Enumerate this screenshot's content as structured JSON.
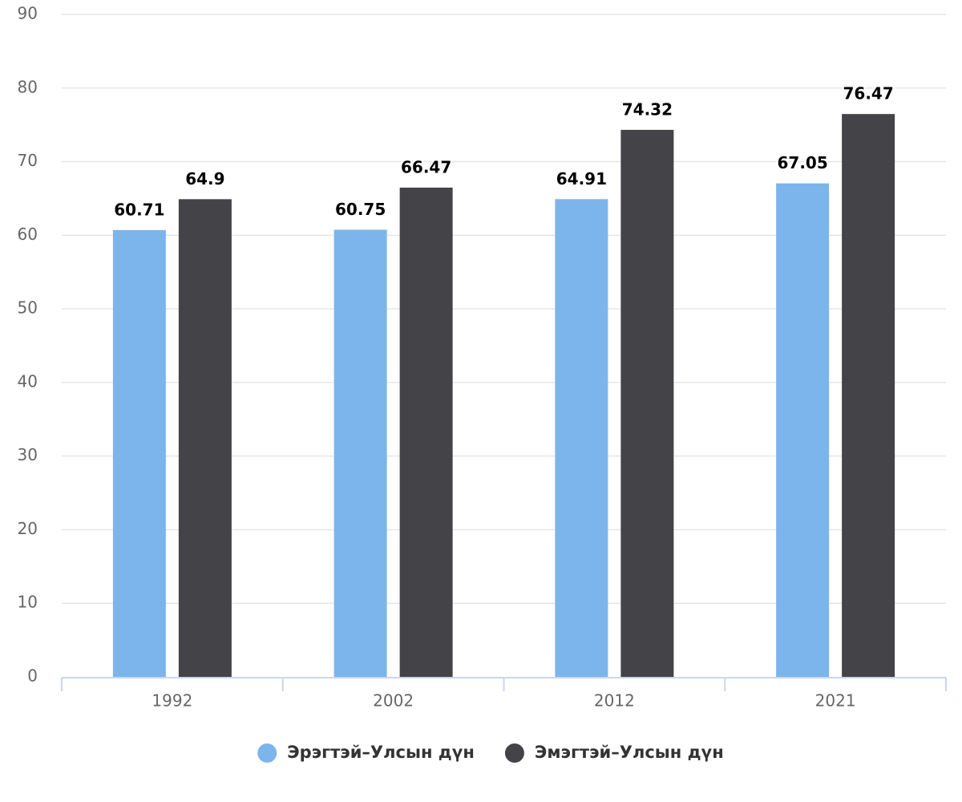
{
  "chart_data": {
    "type": "bar",
    "categories": [
      "1992",
      "2002",
      "2012",
      "2021"
    ],
    "series": [
      {
        "name": "Эрэгтэй–Улсын дүн",
        "color": "#7cb5ec",
        "values": [
          60.71,
          60.75,
          64.91,
          67.05
        ]
      },
      {
        "name": "Эмэгтэй–Улсын дүн",
        "color": "#434348",
        "values": [
          64.9,
          66.47,
          74.32,
          76.47
        ]
      }
    ],
    "ylim": [
      0,
      90
    ],
    "yticks": [
      0,
      10,
      20,
      30,
      40,
      50,
      60,
      70,
      80,
      90
    ],
    "grid": true,
    "legend": "bottom"
  }
}
